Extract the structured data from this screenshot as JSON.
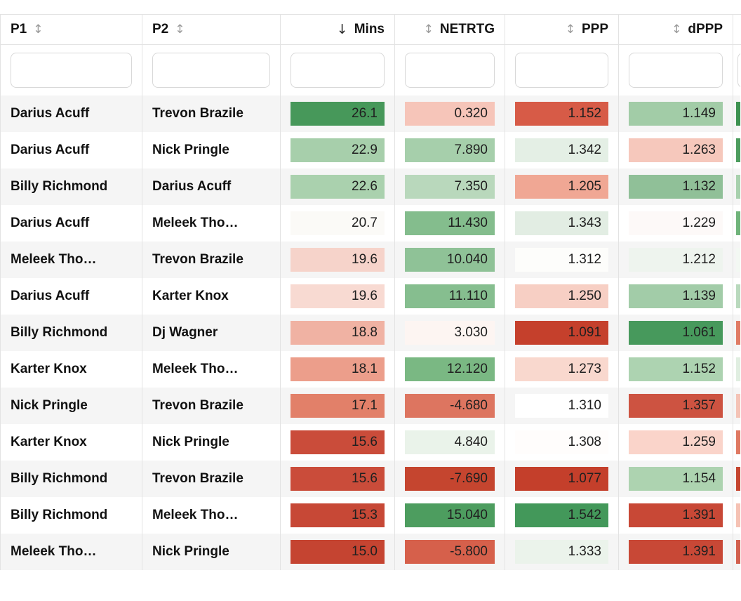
{
  "table": {
    "sort_glyphs": {
      "none": "↕",
      "desc": "↓"
    },
    "filter_placeholder": "",
    "columns": [
      {
        "key": "p1",
        "label": "P1",
        "sort": "none",
        "align": "left",
        "partial": false
      },
      {
        "key": "p2",
        "label": "P2",
        "sort": "none",
        "align": "left",
        "partial": false
      },
      {
        "key": "mins",
        "label": "Mins",
        "sort": "desc",
        "align": "right",
        "partial": false
      },
      {
        "key": "netrtg",
        "label": "NETRTG",
        "sort": "none",
        "align": "right",
        "partial": false
      },
      {
        "key": "ppp",
        "label": "PPP",
        "sort": "none",
        "align": "right",
        "partial": false
      },
      {
        "key": "dppp",
        "label": "dPPP",
        "sort": "none",
        "align": "right",
        "partial": false
      },
      {
        "key": "extra",
        "label": "",
        "sort": "none",
        "align": "right",
        "partial": true
      }
    ],
    "rows": [
      {
        "p1": "Darius Acuff",
        "p2": "Trevon Brazile",
        "mins": {
          "value": "26.1",
          "bg": "#47985a"
        },
        "netrtg": {
          "value": "0.320",
          "bg": "#f6c5b9"
        },
        "ppp": {
          "value": "1.152",
          "bg": "#d75b47"
        },
        "dppp": {
          "value": "1.149",
          "bg": "#a2cca7"
        },
        "extra_bg": "#3d9150"
      },
      {
        "p1": "Darius Acuff",
        "p2": "Nick Pringle",
        "mins": {
          "value": "22.9",
          "bg": "#a7cfab"
        },
        "netrtg": {
          "value": "7.890",
          "bg": "#a6cfab"
        },
        "ppp": {
          "value": "1.342",
          "bg": "#e4efe5"
        },
        "dppp": {
          "value": "1.263",
          "bg": "#f6c8bc"
        },
        "extra_bg": "#4c9c5e"
      },
      {
        "p1": "Billy Richmond",
        "p2": "Darius Acuff",
        "mins": {
          "value": "22.6",
          "bg": "#aad1ae"
        },
        "netrtg": {
          "value": "7.350",
          "bg": "#b9d8bc"
        },
        "ppp": {
          "value": "1.205",
          "bg": "#f0a794"
        },
        "dppp": {
          "value": "1.132",
          "bg": "#90c098"
        },
        "extra_bg": "#a8d0ad"
      },
      {
        "p1": "Darius Acuff",
        "p2": "Meleek Tho…",
        "mins": {
          "value": "20.7",
          "bg": "#fbfaf7"
        },
        "netrtg": {
          "value": "11.430",
          "bg": "#84bd8d"
        },
        "ppp": {
          "value": "1.343",
          "bg": "#e2ede3"
        },
        "dppp": {
          "value": "1.229",
          "bg": "#fdf9f8"
        },
        "extra_bg": "#6fb37a"
      },
      {
        "p1": "Meleek Tho…",
        "p2": "Trevon Brazile",
        "mins": {
          "value": "19.6",
          "bg": "#f6d3ca"
        },
        "netrtg": {
          "value": "10.040",
          "bg": "#8fc297"
        },
        "ppp": {
          "value": "1.312",
          "bg": "#fdfdfb"
        },
        "dppp": {
          "value": "1.212",
          "bg": "#eef4ee"
        },
        "extra_bg": "#f3f8f3"
      },
      {
        "p1": "Darius Acuff",
        "p2": "Karter Knox",
        "mins": {
          "value": "19.6",
          "bg": "#f8dad2"
        },
        "netrtg": {
          "value": "11.110",
          "bg": "#86be8f"
        },
        "ppp": {
          "value": "1.250",
          "bg": "#f7cfc4"
        },
        "dppp": {
          "value": "1.139",
          "bg": "#a2cca8"
        },
        "extra_bg": "#b9d9bd"
      },
      {
        "p1": "Billy Richmond",
        "p2": "Dj Wagner",
        "mins": {
          "value": "18.8",
          "bg": "#f0b2a3"
        },
        "netrtg": {
          "value": "3.030",
          "bg": "#fdf5f2"
        },
        "ppp": {
          "value": "1.091",
          "bg": "#c5402c"
        },
        "dppp": {
          "value": "1.061",
          "bg": "#47995c"
        },
        "extra_bg": "#e07b64"
      },
      {
        "p1": "Karter Knox",
        "p2": "Meleek Tho…",
        "mins": {
          "value": "18.1",
          "bg": "#ec9e8b"
        },
        "netrtg": {
          "value": "12.120",
          "bg": "#7ab883"
        },
        "ppp": {
          "value": "1.273",
          "bg": "#f9d8ce"
        },
        "dppp": {
          "value": "1.152",
          "bg": "#add3b1"
        },
        "extra_bg": "#e0eee1"
      },
      {
        "p1": "Nick Pringle",
        "p2": "Trevon Brazile",
        "mins": {
          "value": "17.1",
          "bg": "#e28069"
        },
        "netrtg": {
          "value": "-4.680",
          "bg": "#dd7560"
        },
        "ppp": {
          "value": "1.310",
          "bg": "#ffffff"
        },
        "dppp": {
          "value": "1.357",
          "bg": "#cd5341"
        },
        "extra_bg": "#f4c3b6"
      },
      {
        "p1": "Karter Knox",
        "p2": "Nick Pringle",
        "mins": {
          "value": "15.6",
          "bg": "#ca4c3a"
        },
        "netrtg": {
          "value": "4.840",
          "bg": "#eaf3ea"
        },
        "ppp": {
          "value": "1.308",
          "bg": "#fffdfc"
        },
        "dppp": {
          "value": "1.259",
          "bg": "#fad4ca"
        },
        "extra_bg": "#df7962"
      },
      {
        "p1": "Billy Richmond",
        "p2": "Trevon Brazile",
        "mins": {
          "value": "15.6",
          "bg": "#ca4c3a"
        },
        "netrtg": {
          "value": "-7.690",
          "bg": "#c5452f"
        },
        "ppp": {
          "value": "1.077",
          "bg": "#c43f2b"
        },
        "dppp": {
          "value": "1.154",
          "bg": "#add3b0"
        },
        "extra_bg": "#c5452f"
      },
      {
        "p1": "Billy Richmond",
        "p2": "Meleek Tho…",
        "mins": {
          "value": "15.3",
          "bg": "#c74836"
        },
        "netrtg": {
          "value": "15.040",
          "bg": "#4d9d5f"
        },
        "ppp": {
          "value": "1.542",
          "bg": "#43985a"
        },
        "dppp": {
          "value": "1.391",
          "bg": "#c84836"
        },
        "extra_bg": "#f5c2b4"
      },
      {
        "p1": "Meleek Tho…",
        "p2": "Nick Pringle",
        "mins": {
          "value": "15.0",
          "bg": "#c54431"
        },
        "netrtg": {
          "value": "-5.800",
          "bg": "#d6604b"
        },
        "ppp": {
          "value": "1.333",
          "bg": "#ebf3eb"
        },
        "dppp": {
          "value": "1.391",
          "bg": "#c84836"
        },
        "extra_bg": "#d2604e"
      }
    ]
  },
  "colors": {
    "row_stripe": "#f5f5f5",
    "row_white": "#ffffff",
    "border": "#e3e3e3",
    "header_text": "#141414",
    "sort_inactive": "#9b9b9b",
    "sort_active": "#2a2a2a",
    "input_border": "#d8d8d8",
    "heat_text": "#202020"
  }
}
